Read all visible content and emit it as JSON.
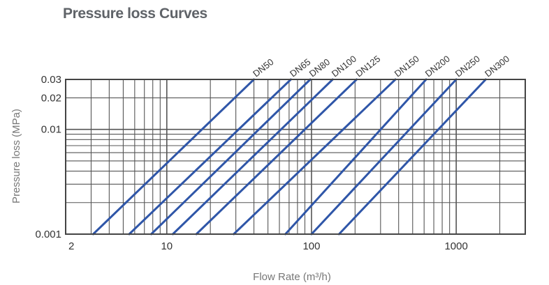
{
  "page": {
    "title": "Pressure loss Curves"
  },
  "chart_data": {
    "type": "line",
    "title": "Pressure loss Curves",
    "xlabel": "Flow Rate (m³/h)",
    "ylabel": "Pressure loss (MPa)",
    "x_scale": "log",
    "y_scale": "log",
    "xlim": [
      2,
      3000
    ],
    "ylim": [
      0.001,
      0.03
    ],
    "x_ticks": [
      {
        "value": 2,
        "label": "2"
      },
      {
        "value": 10,
        "label": "10"
      },
      {
        "value": 100,
        "label": "100"
      },
      {
        "value": 1000,
        "label": "1000"
      }
    ],
    "y_ticks": [
      {
        "value": 0.001,
        "label": "0.001"
      },
      {
        "value": 0.01,
        "label": "0.01"
      },
      {
        "value": 0.02,
        "label": "0.02"
      },
      {
        "value": 0.03,
        "label": "0.03"
      }
    ],
    "grid": true,
    "line_color": "#2f56a8",
    "grid_color": "#555555",
    "series": [
      {
        "name": "DN50",
        "x": [
          3.1,
          40
        ],
        "y": [
          0.001,
          0.03
        ]
      },
      {
        "name": "DN65",
        "x": [
          5.5,
          72
        ],
        "y": [
          0.001,
          0.03
        ]
      },
      {
        "name": "DN80",
        "x": [
          7.8,
          98
        ],
        "y": [
          0.001,
          0.03
        ]
      },
      {
        "name": "DN100",
        "x": [
          11,
          140
        ],
        "y": [
          0.001,
          0.03
        ]
      },
      {
        "name": "DN125",
        "x": [
          16,
          205
        ],
        "y": [
          0.001,
          0.03
        ]
      },
      {
        "name": "DN150",
        "x": [
          29,
          380
        ],
        "y": [
          0.001,
          0.03
        ]
      },
      {
        "name": "DN200",
        "x": [
          66,
          620
        ],
        "y": [
          0.001,
          0.03
        ]
      },
      {
        "name": "DN250",
        "x": [
          100,
          1000
        ],
        "y": [
          0.001,
          0.03
        ]
      },
      {
        "name": "DN300",
        "x": [
          155,
          1600
        ],
        "y": [
          0.001,
          0.03
        ]
      }
    ]
  }
}
